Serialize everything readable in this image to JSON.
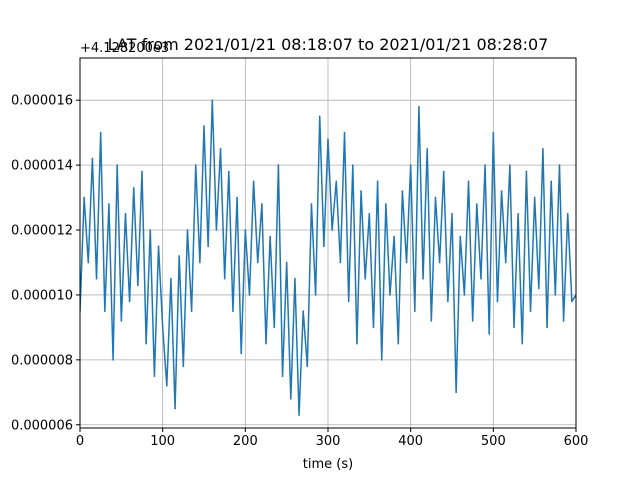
{
  "chart_data": {
    "type": "line",
    "title": "LAT from 2021/01/21 08:18:07 to 2021/01/21 08:28:07",
    "xlabel": "time (s)",
    "ylabel": "",
    "y_offset_label": "+4.128200e3",
    "xlim": [
      0,
      600
    ],
    "ylim": [
      5.9e-06,
      1.73e-05
    ],
    "grid": true,
    "x_ticks": [
      0,
      100,
      200,
      300,
      400,
      500,
      600
    ],
    "x_tick_labels": [
      "0",
      "100",
      "200",
      "300",
      "400",
      "500",
      "600"
    ],
    "y_ticks": [
      6e-06,
      8e-06,
      1e-05,
      1.2e-05,
      1.4e-05,
      1.6e-05
    ],
    "y_tick_labels": [
      "0.000006",
      "0.000008",
      "0.000010",
      "0.000012",
      "0.000014",
      "0.000016"
    ],
    "series": [
      {
        "color": "#1f77b4",
        "x": [
          0,
          5,
          10,
          15,
          20,
          25,
          30,
          35,
          40,
          45,
          50,
          55,
          60,
          65,
          70,
          75,
          80,
          85,
          90,
          95,
          100,
          105,
          110,
          115,
          120,
          125,
          130,
          135,
          140,
          145,
          150,
          155,
          160,
          165,
          170,
          175,
          180,
          185,
          190,
          195,
          200,
          205,
          210,
          215,
          220,
          225,
          230,
          235,
          240,
          245,
          250,
          255,
          260,
          265,
          270,
          275,
          280,
          285,
          290,
          295,
          300,
          305,
          310,
          315,
          320,
          325,
          330,
          335,
          340,
          345,
          350,
          355,
          360,
          365,
          370,
          375,
          380,
          385,
          390,
          395,
          400,
          405,
          410,
          415,
          420,
          425,
          430,
          435,
          440,
          445,
          450,
          455,
          460,
          465,
          470,
          475,
          480,
          485,
          490,
          495,
          500,
          505,
          510,
          515,
          520,
          525,
          530,
          535,
          540,
          545,
          550,
          555,
          560,
          565,
          570,
          575,
          580,
          585,
          590,
          595,
          600
        ],
        "y": [
          9.5e-06,
          1.3e-05,
          1.1e-05,
          1.42e-05,
          1.05e-05,
          1.5e-05,
          9.5e-06,
          1.28e-05,
          8e-06,
          1.4e-05,
          9.2e-06,
          1.25e-05,
          9.8e-06,
          1.33e-05,
          1.03e-05,
          1.38e-05,
          8.5e-06,
          1.2e-05,
          7.5e-06,
          1.15e-05,
          9e-06,
          7.2e-06,
          1.05e-05,
          6.5e-06,
          1.12e-05,
          7.8e-06,
          1.2e-05,
          9.5e-06,
          1.4e-05,
          1.1e-05,
          1.52e-05,
          1.15e-05,
          1.6e-05,
          1.2e-05,
          1.45e-05,
          1.05e-05,
          1.38e-05,
          9.5e-06,
          1.3e-05,
          8.2e-06,
          1.2e-05,
          1e-05,
          1.35e-05,
          1.1e-05,
          1.28e-05,
          8.5e-06,
          1.18e-05,
          9e-06,
          1.4e-05,
          7.5e-06,
          1.1e-05,
          6.8e-06,
          1.05e-05,
          6.3e-06,
          9.5e-06,
          7.8e-06,
          1.28e-05,
          1e-05,
          1.55e-05,
          1.15e-05,
          1.48e-05,
          1.2e-05,
          1.35e-05,
          1.1e-05,
          1.5e-05,
          9.8e-06,
          1.4e-05,
          8.5e-06,
          1.32e-05,
          1.05e-05,
          1.25e-05,
          9e-06,
          1.35e-05,
          8e-06,
          1.28e-05,
          1e-05,
          1.18e-05,
          8.5e-06,
          1.32e-05,
          1.1e-05,
          1.4e-05,
          9.5e-06,
          1.58e-05,
          1.05e-05,
          1.45e-05,
          9.2e-06,
          1.3e-05,
          1.1e-05,
          1.38e-05,
          9.8e-06,
          1.25e-05,
          7e-06,
          1.18e-05,
          1e-05,
          1.35e-05,
          9.2e-06,
          1.28e-05,
          1.05e-05,
          1.4e-05,
          8.8e-06,
          1.5e-05,
          9.8e-06,
          1.32e-05,
          1.1e-05,
          1.4e-05,
          9e-06,
          1.25e-05,
          8.5e-06,
          1.38e-05,
          9.5e-06,
          1.3e-05,
          1.02e-05,
          1.45e-05,
          9e-06,
          1.35e-05,
          1e-05,
          1.4e-05,
          9.2e-06,
          1.25e-05,
          9.8e-06,
          1e-05
        ]
      }
    ]
  }
}
